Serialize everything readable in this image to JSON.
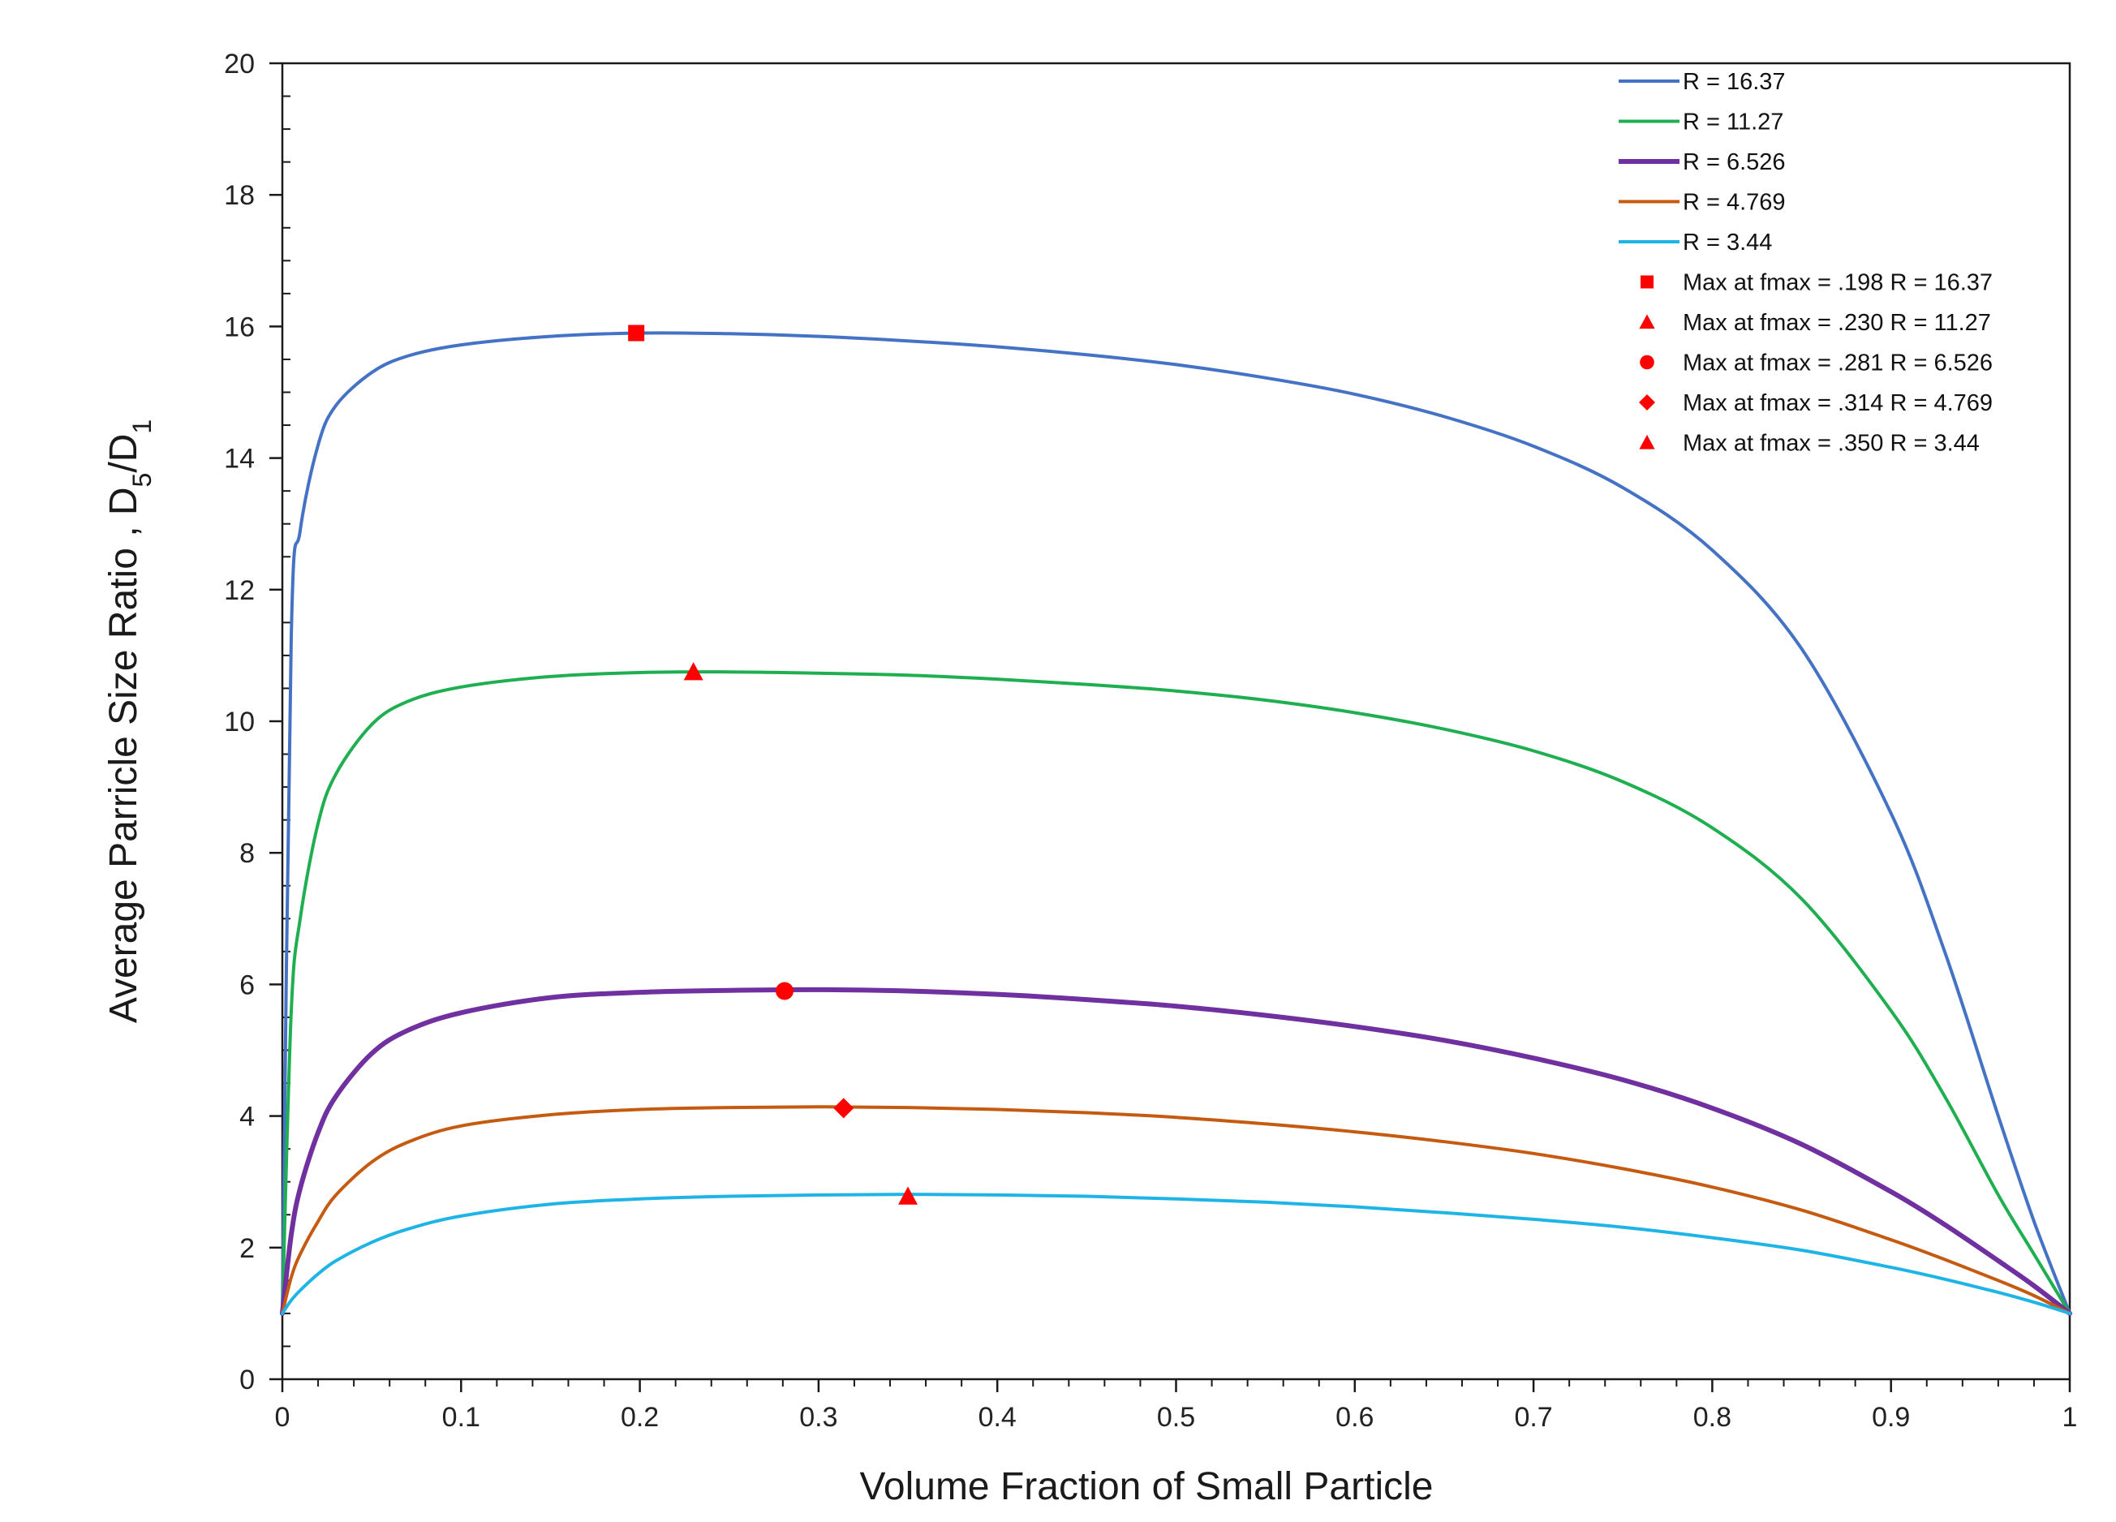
{
  "chart_data": {
    "type": "line",
    "title": "",
    "xlabel": "Volume Fraction of Small Particle",
    "ylabel": {
      "main": "Average  Parricle Size Ratio ,  D",
      "sub1": "5",
      "slash": "/D",
      "sub2": "1"
    },
    "xlim": [
      0,
      1
    ],
    "ylim": [
      0,
      20
    ],
    "xticks": [
      0,
      0.1,
      0.2,
      0.3,
      0.4,
      0.5,
      0.6,
      0.7,
      0.8,
      0.9,
      1
    ],
    "xtick_labels": [
      "0",
      "0.1",
      "0.2",
      "0.3",
      "0.4",
      "0.5",
      "0.6",
      "0.7",
      "0.8",
      "0.9",
      "1"
    ],
    "yticks": [
      0,
      2,
      4,
      6,
      8,
      10,
      12,
      14,
      16,
      18,
      20
    ],
    "ytick_labels": [
      "0",
      "2",
      "4",
      "6",
      "8",
      "10",
      "12",
      "14",
      "16",
      "18",
      "20"
    ],
    "grid": false,
    "legend_position": "top-right",
    "x": [
      0,
      0.005,
      0.01,
      0.02,
      0.03,
      0.05,
      0.07,
      0.1,
      0.15,
      0.2,
      0.25,
      0.3,
      0.35,
      0.4,
      0.45,
      0.5,
      0.55,
      0.6,
      0.65,
      0.7,
      0.75,
      0.8,
      0.85,
      0.9,
      0.93,
      0.96,
      0.98,
      1.0
    ],
    "series": [
      {
        "name": "R = 16.37",
        "color": "#4472C4",
        "width": 4,
        "values": [
          1,
          11.3,
          12.9,
          14.2,
          14.8,
          15.3,
          15.55,
          15.72,
          15.85,
          15.9,
          15.89,
          15.85,
          15.78,
          15.69,
          15.57,
          15.42,
          15.22,
          14.97,
          14.63,
          14.18,
          13.55,
          12.6,
          11.1,
          8.6,
          6.5,
          4.0,
          2.4,
          1
        ]
      },
      {
        "name": "R = 11.27",
        "color": "#1FAF50",
        "width": 4,
        "values": [
          1,
          5.6,
          7.0,
          8.45,
          9.2,
          9.95,
          10.3,
          10.52,
          10.68,
          10.74,
          10.75,
          10.73,
          10.7,
          10.64,
          10.56,
          10.46,
          10.32,
          10.13,
          9.88,
          9.55,
          9.08,
          8.38,
          7.3,
          5.6,
          4.3,
          2.8,
          1.9,
          1
        ]
      },
      {
        "name": "R = 6.526",
        "color": "#7030A0",
        "width": 6,
        "values": [
          1,
          2.2,
          2.9,
          3.75,
          4.3,
          4.95,
          5.3,
          5.57,
          5.8,
          5.88,
          5.91,
          5.92,
          5.9,
          5.85,
          5.77,
          5.67,
          5.53,
          5.36,
          5.15,
          4.88,
          4.55,
          4.12,
          3.57,
          2.85,
          2.35,
          1.8,
          1.42,
          1
        ]
      },
      {
        "name": "R = 4.769",
        "color": "#C55A11",
        "width": 4,
        "values": [
          1,
          1.55,
          1.9,
          2.4,
          2.8,
          3.3,
          3.6,
          3.85,
          4.02,
          4.1,
          4.13,
          4.14,
          4.13,
          4.1,
          4.05,
          3.98,
          3.88,
          3.76,
          3.61,
          3.43,
          3.2,
          2.92,
          2.57,
          2.12,
          1.82,
          1.5,
          1.27,
          1
        ]
      },
      {
        "name": "R = 3.44",
        "color": "#1FB4E6",
        "width": 4,
        "values": [
          1,
          1.2,
          1.35,
          1.6,
          1.8,
          2.08,
          2.28,
          2.48,
          2.66,
          2.74,
          2.78,
          2.8,
          2.81,
          2.8,
          2.78,
          2.74,
          2.69,
          2.62,
          2.53,
          2.43,
          2.31,
          2.15,
          1.96,
          1.7,
          1.52,
          1.32,
          1.17,
          1
        ]
      }
    ],
    "markers": [
      {
        "label": "Max at  fmax = .198   R = 16.37",
        "shape": "square",
        "x": 0.198,
        "y": 15.9,
        "color": "#FF0000"
      },
      {
        "label": "Max at  fmax = .230   R = 11.27",
        "shape": "triangle",
        "x": 0.23,
        "y": 10.75,
        "color": "#FF0000"
      },
      {
        "label": "Max at  fmax = .281   R = 6.526",
        "shape": "circle",
        "x": 0.281,
        "y": 5.9,
        "color": "#FF0000"
      },
      {
        "label": "Max at  fmax = .314   R = 4.769",
        "shape": "diamond",
        "x": 0.314,
        "y": 4.12,
        "color": "#FF0000"
      },
      {
        "label": "Max at  fmax = .350   R = 3.44",
        "shape": "triangle",
        "x": 0.35,
        "y": 2.78,
        "color": "#FF0000"
      }
    ]
  }
}
